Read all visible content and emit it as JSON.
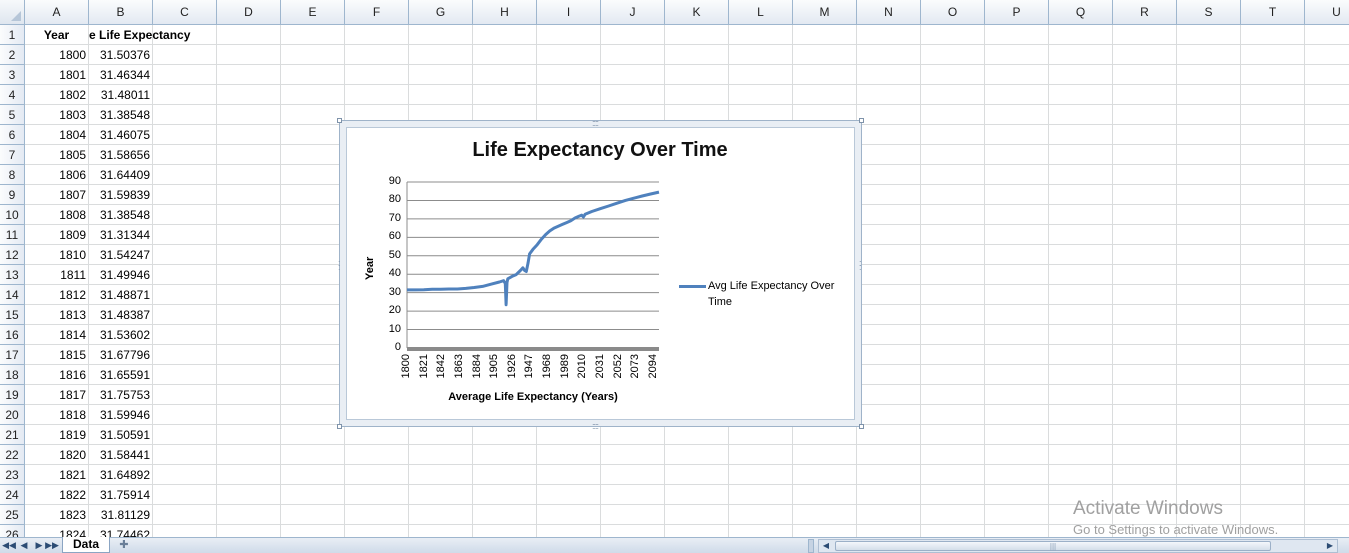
{
  "spreadsheet": {
    "columns": [
      "A",
      "B",
      "C",
      "D",
      "E",
      "F",
      "G",
      "H",
      "I",
      "J",
      "K",
      "L",
      "M",
      "N",
      "O",
      "P",
      "Q",
      "R",
      "S",
      "T",
      "U"
    ],
    "header_row": {
      "A": "Year",
      "B": "e Life Expectancy"
    },
    "rows": [
      {
        "row": "1",
        "year": "",
        "value": ""
      },
      {
        "row": "2",
        "year": "1800",
        "value": "31.50376"
      },
      {
        "row": "3",
        "year": "1801",
        "value": "31.46344"
      },
      {
        "row": "4",
        "year": "1802",
        "value": "31.48011"
      },
      {
        "row": "5",
        "year": "1803",
        "value": "31.38548"
      },
      {
        "row": "6",
        "year": "1804",
        "value": "31.46075"
      },
      {
        "row": "7",
        "year": "1805",
        "value": "31.58656"
      },
      {
        "row": "8",
        "year": "1806",
        "value": "31.64409"
      },
      {
        "row": "9",
        "year": "1807",
        "value": "31.59839"
      },
      {
        "row": "10",
        "year": "1808",
        "value": "31.38548"
      },
      {
        "row": "11",
        "year": "1809",
        "value": "31.31344"
      },
      {
        "row": "12",
        "year": "1810",
        "value": "31.54247"
      },
      {
        "row": "13",
        "year": "1811",
        "value": "31.49946"
      },
      {
        "row": "14",
        "year": "1812",
        "value": "31.48871"
      },
      {
        "row": "15",
        "year": "1813",
        "value": "31.48387"
      },
      {
        "row": "16",
        "year": "1814",
        "value": "31.53602"
      },
      {
        "row": "17",
        "year": "1815",
        "value": "31.67796"
      },
      {
        "row": "18",
        "year": "1816",
        "value": "31.65591"
      },
      {
        "row": "19",
        "year": "1817",
        "value": "31.75753"
      },
      {
        "row": "20",
        "year": "1818",
        "value": "31.59946"
      },
      {
        "row": "21",
        "year": "1819",
        "value": "31.50591"
      },
      {
        "row": "22",
        "year": "1820",
        "value": "31.58441"
      },
      {
        "row": "23",
        "year": "1821",
        "value": "31.64892"
      },
      {
        "row": "24",
        "year": "1822",
        "value": "31.75914"
      },
      {
        "row": "25",
        "year": "1823",
        "value": "31.81129"
      },
      {
        "row": "26",
        "year": "1824",
        "value": "31.74462"
      }
    ]
  },
  "chart_data": {
    "type": "line",
    "title": "Life Expectancy Over Time",
    "xlabel": "Average Life Expectancy  (Years)",
    "ylabel": "Year",
    "ylim": [
      0,
      90
    ],
    "yticks": [
      "0",
      "10",
      "20",
      "30",
      "40",
      "50",
      "60",
      "70",
      "80",
      "90"
    ],
    "xticks": [
      "1800",
      "1821",
      "1842",
      "1863",
      "1884",
      "1905",
      "1926",
      "1947",
      "1968",
      "1989",
      "2010",
      "2031",
      "2052",
      "2073",
      "2094"
    ],
    "grid": true,
    "legend_position": "right",
    "series": [
      {
        "name": "Avg Life Expectancy Over Time",
        "color": "#4f81bd",
        "points": [
          [
            1800,
            31.5
          ],
          [
            1810,
            31.5
          ],
          [
            1820,
            31.6
          ],
          [
            1830,
            31.8
          ],
          [
            1840,
            31.9
          ],
          [
            1850,
            32.0
          ],
          [
            1860,
            32.0
          ],
          [
            1870,
            32.3
          ],
          [
            1880,
            32.8
          ],
          [
            1890,
            33.4
          ],
          [
            1900,
            34.6
          ],
          [
            1910,
            35.8
          ],
          [
            1915,
            36.5
          ],
          [
            1917,
            35.0
          ],
          [
            1918,
            23.5
          ],
          [
            1919,
            35.5
          ],
          [
            1920,
            37.5
          ],
          [
            1925,
            38.8
          ],
          [
            1930,
            39.8
          ],
          [
            1935,
            42.0
          ],
          [
            1938,
            43.5
          ],
          [
            1940,
            42.0
          ],
          [
            1942,
            41.5
          ],
          [
            1944,
            46.0
          ],
          [
            1946,
            51.0
          ],
          [
            1950,
            53.5
          ],
          [
            1955,
            56.0
          ],
          [
            1960,
            59.0
          ],
          [
            1965,
            61.5
          ],
          [
            1970,
            63.5
          ],
          [
            1975,
            65.0
          ],
          [
            1980,
            66.0
          ],
          [
            1985,
            67.0
          ],
          [
            1990,
            68.0
          ],
          [
            1995,
            69.0
          ],
          [
            2000,
            70.5
          ],
          [
            2005,
            71.5
          ],
          [
            2008,
            72.0
          ],
          [
            2010,
            71.0
          ],
          [
            2012,
            72.5
          ],
          [
            2020,
            74.0
          ],
          [
            2030,
            75.5
          ],
          [
            2040,
            77.0
          ],
          [
            2050,
            78.5
          ],
          [
            2060,
            80.0
          ],
          [
            2070,
            81.2
          ],
          [
            2080,
            82.4
          ],
          [
            2090,
            83.5
          ],
          [
            2100,
            84.5
          ]
        ]
      }
    ]
  },
  "sheet_tabs": {
    "active": "Data"
  },
  "watermark": {
    "title": "Activate Windows",
    "subtitle": "Go to Settings to activate Windows."
  }
}
